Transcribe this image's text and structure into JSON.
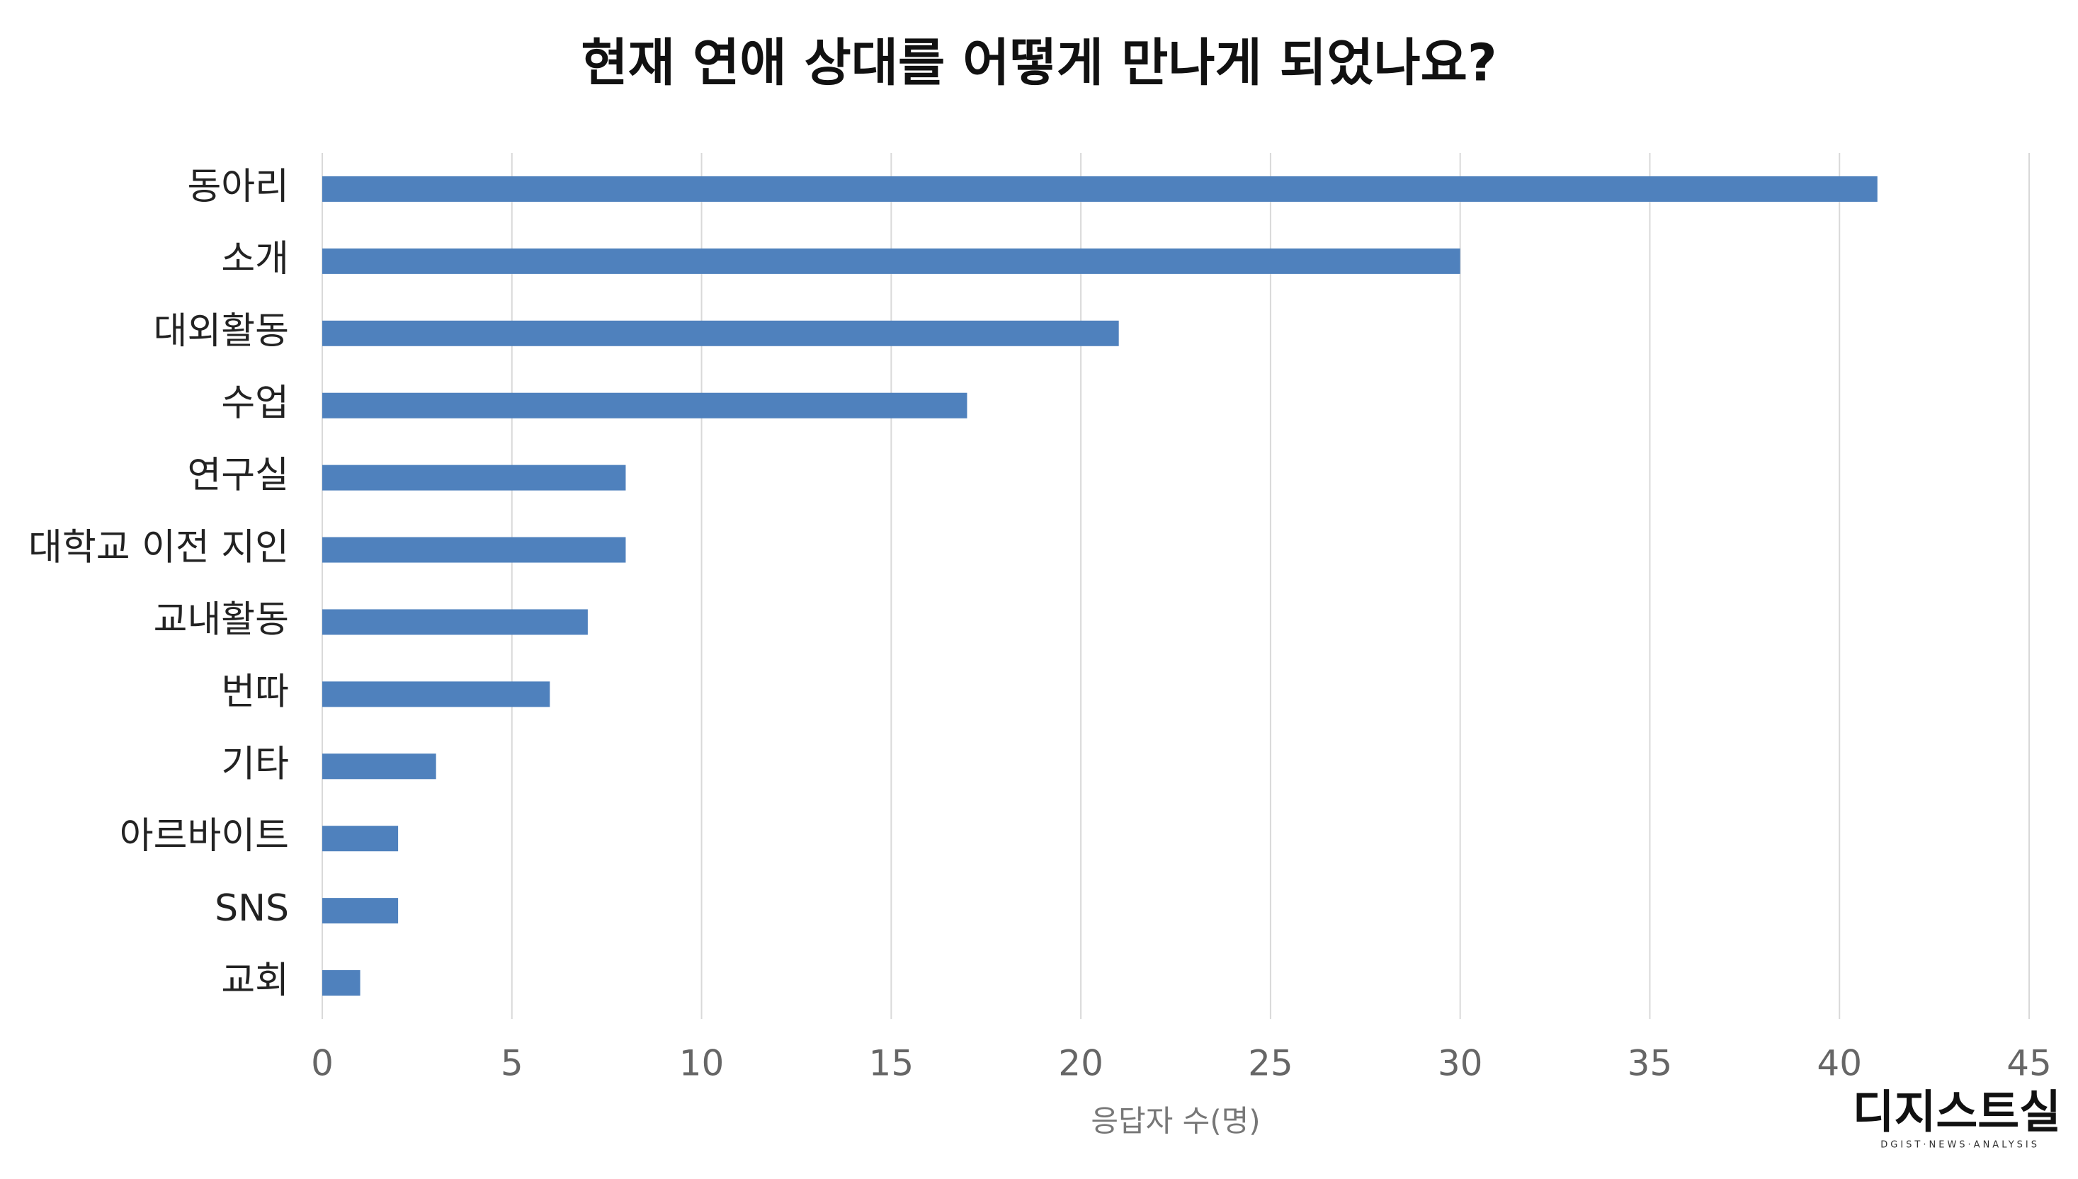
{
  "chart_data": {
    "type": "bar",
    "orientation": "horizontal",
    "title": "현재 연애 상대를 어떻게 만나게 되었나요?",
    "categories": [
      "동아리",
      "소개",
      "대외활동",
      "수업",
      "연구실",
      "대학교 이전 지인",
      "교내활동",
      "번따",
      "기타",
      "아르바이트",
      "SNS",
      "교회"
    ],
    "values": [
      41,
      30,
      21,
      17,
      8,
      8,
      7,
      6,
      3,
      2,
      2,
      1
    ],
    "color": "#4f81bd",
    "xlabel": "응답자 수(명)",
    "xlim": [
      0,
      45
    ],
    "xticks": [
      0,
      5,
      10,
      15,
      20,
      25,
      30,
      35,
      40,
      45
    ],
    "grid": true
  },
  "logo": {
    "text": "디지스트실",
    "subtext": "DGIST·NEWS·ANALYSIS"
  }
}
